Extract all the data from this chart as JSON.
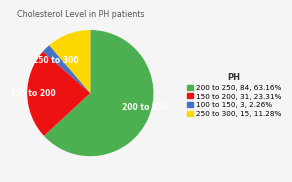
{
  "title": "Cholesterol Level in PH patients",
  "legend_title": "PH",
  "slices": [
    {
      "label": "200 to 250",
      "count": 84,
      "pct": 63.16,
      "color": "#4CAF50",
      "pie_label": "200 to 250"
    },
    {
      "label": "150 to 200",
      "count": 31,
      "pct": 23.31,
      "color": "#EE1111",
      "pie_label": "150 to 200"
    },
    {
      "label": "100 to 150",
      "count": 3,
      "pct": 2.26,
      "color": "#4472C4",
      "pie_label": ""
    },
    {
      "label": "250 to 300",
      "count": 15,
      "pct": 11.28,
      "color": "#FFD700",
      "pie_label": "250 to 300"
    }
  ],
  "background_color": "#f5f5f5",
  "title_fontsize": 5.8,
  "label_fontsize": 5.5,
  "legend_fontsize": 5.2,
  "legend_title_fontsize": 6.0
}
